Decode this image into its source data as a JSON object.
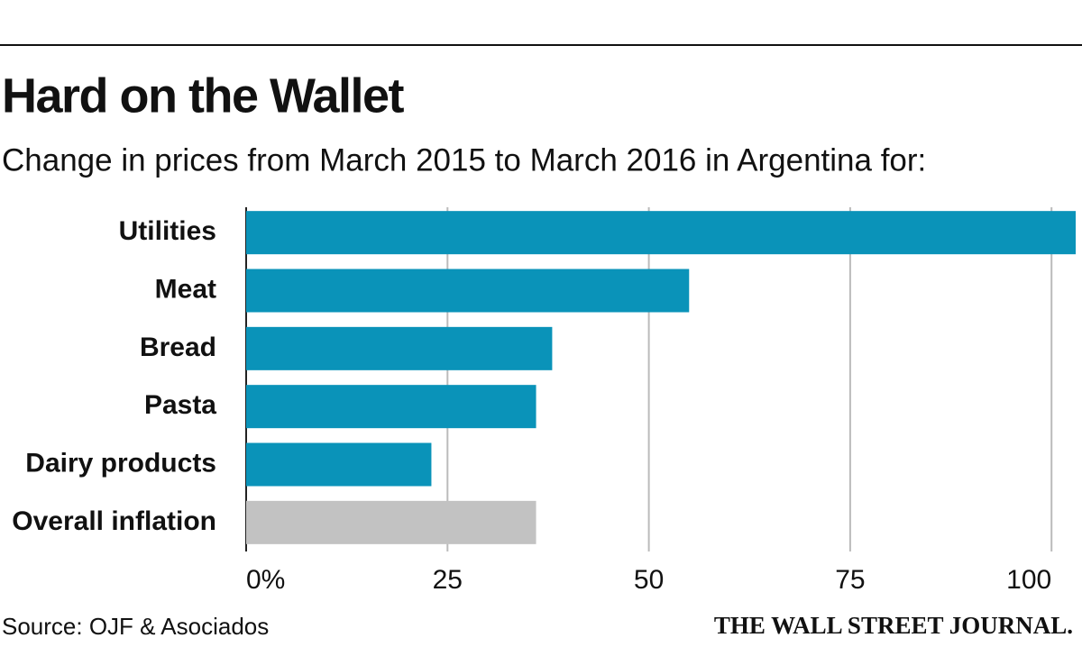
{
  "chart_data": {
    "type": "barh",
    "title": "Hard on the Wallet",
    "subtitle": "Change in prices from March 2015 to March 2016 in Argentina for:",
    "categories": [
      "Utilities",
      "Meat",
      "Bread",
      "Pasta",
      "Dairy products",
      "Overall inflation"
    ],
    "values": [
      103,
      55,
      38,
      36,
      23,
      36
    ],
    "colors": [
      "#0a93b9",
      "#0a93b9",
      "#0a93b9",
      "#0a93b9",
      "#0a93b9",
      "#c2c2c2"
    ],
    "xlim": [
      0,
      103
    ],
    "xticks": [
      {
        "value": 0,
        "label": "0%"
      },
      25,
      50,
      75,
      100
    ],
    "grid": true,
    "source": "Source: OJF & Asociados",
    "credit": "THE WALL STREET JOURNAL."
  }
}
